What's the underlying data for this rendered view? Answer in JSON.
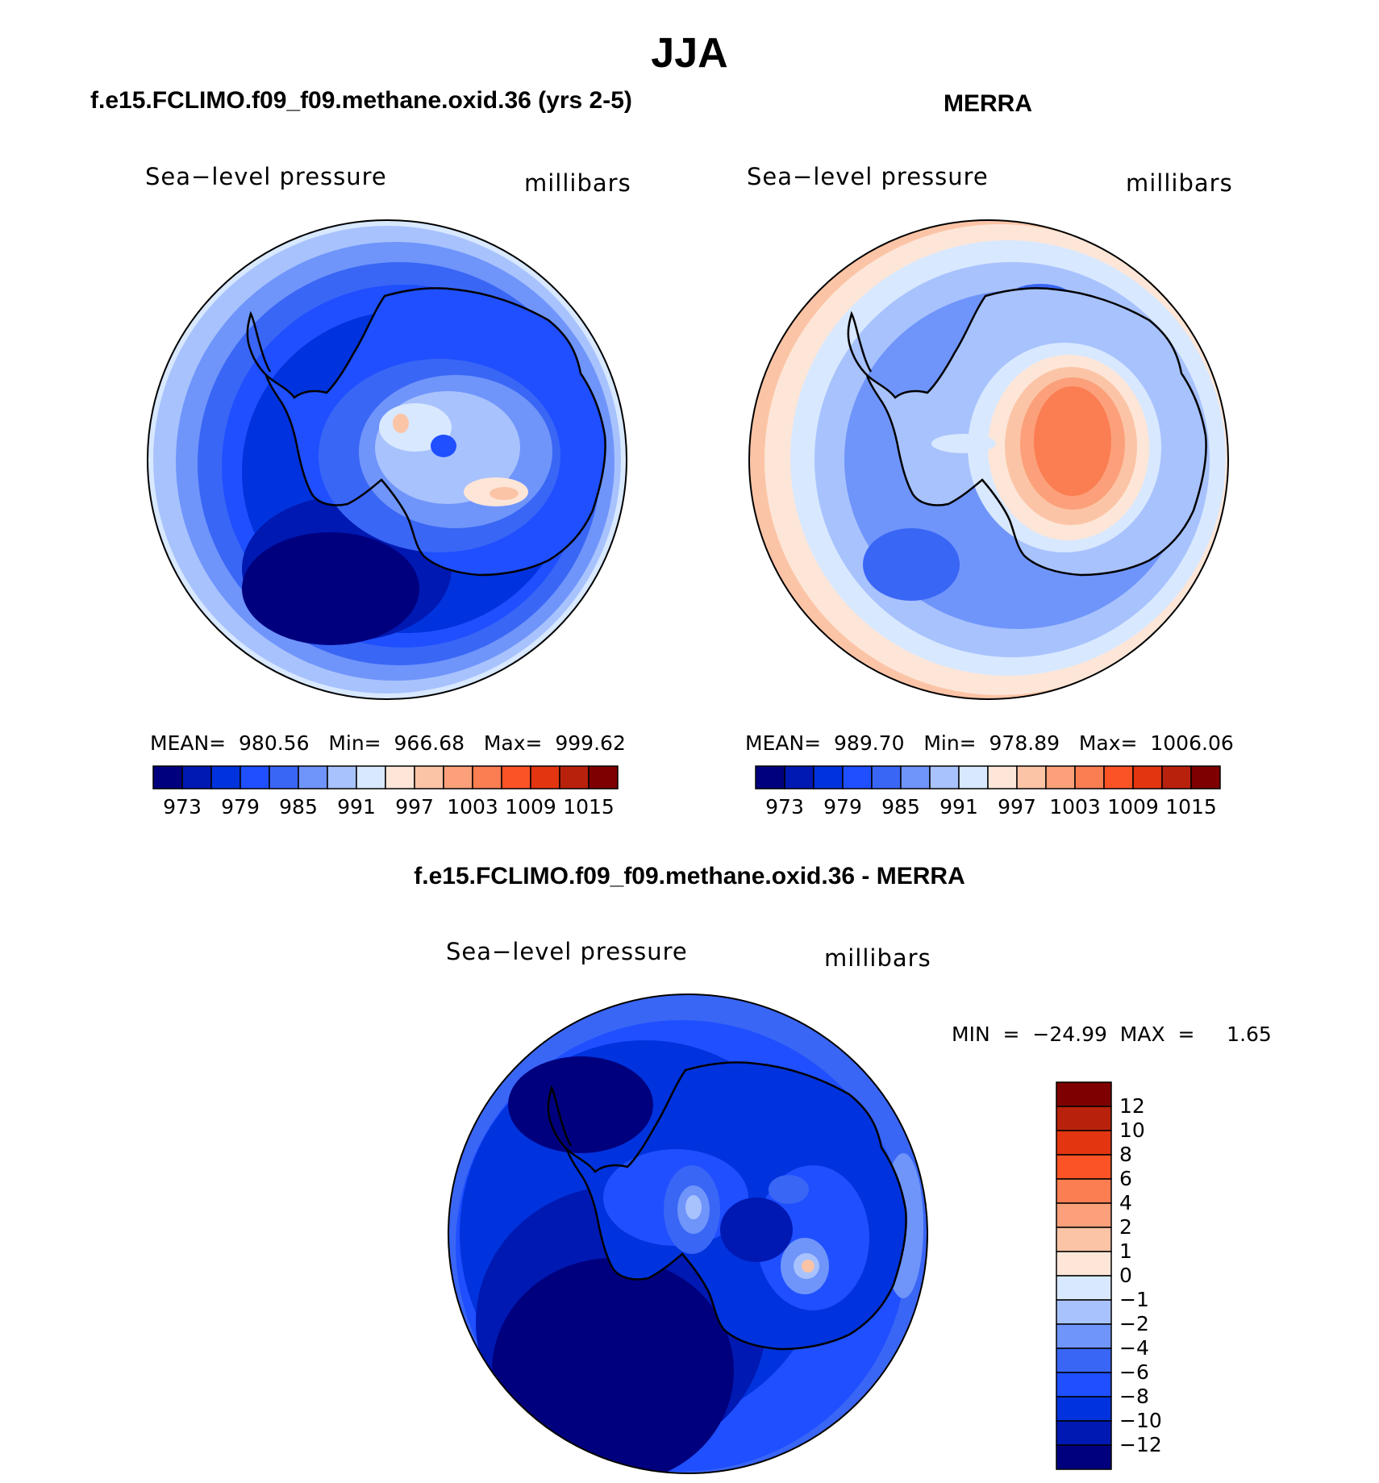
{
  "main_title": "JJA",
  "panel_a": {
    "title": "f.e15.FCLIMO.f09_f09.methane.oxid.36 (yrs 2-5)",
    "variable": "Sea−level pressure",
    "units": "millibars",
    "stats": "MEAN=  980.56   Min=  966.68   Max=  999.62"
  },
  "panel_b": {
    "title": "MERRA",
    "variable": "Sea−level pressure",
    "units": "millibars",
    "stats": "MEAN=  989.70   Min=  978.89   Max=  1006.06"
  },
  "panel_c": {
    "title": "f.e15.FCLIMO.f09_f09.methane.oxid.36 - MERRA",
    "variable": "Sea−level pressure",
    "units": "millibars",
    "stats": "MIN  =  −24.99  MAX  =     1.65"
  },
  "colors": {
    "abs_scale": [
      "#00007f",
      "#0019b2",
      "#0033dd",
      "#1f4fff",
      "#3a66f5",
      "#6f95fb",
      "#a8c2fd",
      "#d8e8ff",
      "#fde6d8",
      "#fcc4a6",
      "#fba07a",
      "#fb7d52",
      "#fb5326",
      "#e23510",
      "#b8220d",
      "#7f0000"
    ],
    "diff_scale": [
      "#00007f",
      "#0019b2",
      "#0033dd",
      "#1f4fff",
      "#3a66f5",
      "#6f95fb",
      "#a8c2fd",
      "#d8e8ff",
      "#fde6d8",
      "#fcc4a6",
      "#fba07a",
      "#fb7d52",
      "#fb5326",
      "#e23510",
      "#b8220d",
      "#7f0000"
    ]
  },
  "chart_data": [
    {
      "type": "contour-map",
      "title": "f.e15.FCLIMO.f09_f09.methane.oxid.36 (yrs 2-5)",
      "variable": "Sea-level pressure",
      "units": "millibars",
      "projection": "south polar stereographic",
      "mean": 980.56,
      "min": 966.68,
      "max": 999.62,
      "colorbar_orientation": "horizontal",
      "colorbar_levels": [
        970,
        973,
        976,
        979,
        982,
        985,
        988,
        991,
        994,
        997,
        1000,
        1003,
        1006,
        1009,
        1012,
        1015
      ],
      "colorbar_tick_labels": [
        "973",
        "979",
        "985",
        "991",
        "997",
        "1003",
        "1009",
        "1015"
      ]
    },
    {
      "type": "contour-map",
      "title": "MERRA",
      "variable": "Sea-level pressure",
      "units": "millibars",
      "projection": "south polar stereographic",
      "mean": 989.7,
      "min": 978.89,
      "max": 1006.06,
      "colorbar_orientation": "horizontal",
      "colorbar_levels": [
        970,
        973,
        976,
        979,
        982,
        985,
        988,
        991,
        994,
        997,
        1000,
        1003,
        1006,
        1009,
        1012,
        1015
      ],
      "colorbar_tick_labels": [
        "973",
        "979",
        "985",
        "991",
        "997",
        "1003",
        "1009",
        "1015"
      ]
    },
    {
      "type": "contour-map",
      "title": "f.e15.FCLIMO.f09_f09.methane.oxid.36 - MERRA",
      "variable": "Sea-level pressure",
      "units": "millibars",
      "projection": "south polar stereographic",
      "min": -24.99,
      "max": 1.65,
      "colorbar_orientation": "vertical",
      "colorbar_levels": [
        -12,
        -10,
        -8,
        -6,
        -4,
        -2,
        -1,
        0,
        1,
        2,
        4,
        6,
        8,
        10,
        12
      ],
      "colorbar_tick_labels": [
        "12",
        "10",
        "8",
        "6",
        "4",
        "2",
        "1",
        "0",
        "−1",
        "−2",
        "−4",
        "−6",
        "−8",
        "−10",
        "−12"
      ]
    }
  ]
}
